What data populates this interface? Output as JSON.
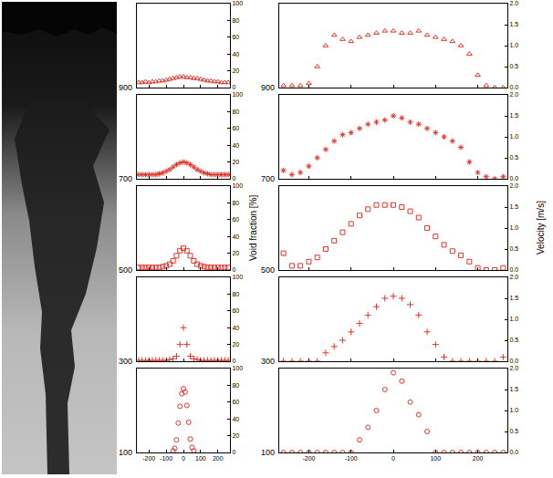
{
  "chart_data": [
    {
      "type": "scatter",
      "title": "900",
      "marker": "triangle",
      "color": "#e0352b",
      "x": [
        -260,
        -240,
        -220,
        -200,
        -180,
        -160,
        -140,
        -120,
        -100,
        -80,
        -60,
        -40,
        -20,
        0,
        20,
        40,
        60,
        80,
        100,
        120,
        140,
        160,
        180,
        200,
        220,
        240,
        260
      ],
      "values": [
        6,
        6,
        7,
        6,
        7,
        7,
        8,
        8,
        9,
        10,
        11,
        12,
        13,
        13,
        12,
        12,
        11,
        11,
        10,
        9,
        8,
        8,
        7,
        7,
        6,
        6,
        6
      ],
      "xlim": [
        -270,
        270
      ],
      "xticks": [
        -200,
        -100,
        0,
        100,
        200
      ],
      "ylim": [
        0,
        100
      ],
      "yticks": [
        0,
        20,
        40,
        60,
        80,
        100
      ],
      "grid": false,
      "tick_labels": "y"
    },
    {
      "type": "scatter",
      "title": "700",
      "marker": "asterisk",
      "color": "#e0352b",
      "x": [
        -260,
        -240,
        -220,
        -200,
        -180,
        -160,
        -140,
        -120,
        -100,
        -80,
        -60,
        -40,
        -20,
        0,
        20,
        40,
        60,
        80,
        100,
        120,
        140,
        160,
        180,
        200,
        220,
        240,
        260
      ],
      "values": [
        5,
        5,
        5,
        5,
        5,
        5,
        6,
        7,
        9,
        11,
        14,
        17,
        19,
        20,
        19,
        17,
        14,
        11,
        9,
        7,
        6,
        5,
        5,
        5,
        5,
        5,
        5
      ],
      "xlim": [
        -270,
        270
      ],
      "xticks": [
        -200,
        -100,
        0,
        100,
        200
      ],
      "ylim": [
        0,
        100
      ],
      "yticks": [
        0,
        20,
        40,
        60,
        80,
        100
      ],
      "grid": false,
      "tick_labels": "y"
    },
    {
      "type": "scatter",
      "title": "500",
      "marker": "square",
      "color": "#e0352b",
      "ylabel": "Void fraction [%]",
      "x": [
        -260,
        -240,
        -220,
        -200,
        -180,
        -160,
        -140,
        -120,
        -100,
        -80,
        -60,
        -40,
        -20,
        0,
        20,
        40,
        60,
        80,
        100,
        120,
        140,
        160,
        180,
        200,
        220,
        240,
        260
      ],
      "values": [
        3,
        3,
        3,
        3,
        3,
        3,
        3,
        4,
        5,
        7,
        11,
        17,
        23,
        26,
        23,
        17,
        11,
        7,
        5,
        4,
        3,
        3,
        3,
        3,
        3,
        3,
        3
      ],
      "xlim": [
        -270,
        270
      ],
      "xticks": [
        -200,
        -100,
        0,
        100,
        200
      ],
      "ylim": [
        0,
        100
      ],
      "yticks": [
        0,
        20,
        40,
        60,
        80,
        100
      ],
      "grid": false,
      "tick_labels": "y"
    },
    {
      "type": "scatter",
      "title": "300",
      "marker": "plus",
      "color": "#e0352b",
      "x": [
        -260,
        -240,
        -220,
        -200,
        -180,
        -160,
        -140,
        -120,
        -100,
        -80,
        -60,
        -40,
        -20,
        0,
        20,
        40,
        60,
        80,
        100,
        120,
        140,
        160,
        180,
        200,
        220,
        240,
        260
      ],
      "values": [
        1,
        1,
        1,
        1,
        1,
        1,
        1,
        1,
        1,
        2,
        3,
        6,
        20,
        40,
        20,
        6,
        3,
        2,
        1,
        1,
        1,
        1,
        1,
        1,
        1,
        1,
        1
      ],
      "xlim": [
        -270,
        270
      ],
      "xticks": [
        -200,
        -100,
        0,
        100,
        200
      ],
      "ylim": [
        0,
        100
      ],
      "yticks": [
        0,
        20,
        40,
        60,
        80,
        100
      ],
      "grid": false,
      "tick_labels": "y"
    },
    {
      "type": "scatter",
      "title": "100",
      "marker": "circle",
      "color": "#e0352b",
      "x": [
        -60,
        -50,
        -40,
        -30,
        -20,
        -10,
        0,
        10,
        20,
        30,
        40,
        50,
        60
      ],
      "values": [
        2,
        5,
        15,
        35,
        55,
        70,
        76,
        72,
        56,
        36,
        16,
        6,
        2
      ],
      "xlim": [
        -270,
        270
      ],
      "xticks": [
        -200,
        -100,
        0,
        100,
        200
      ],
      "ylim": [
        0,
        100
      ],
      "yticks": [
        0,
        20,
        40,
        60,
        80,
        100
      ],
      "grid": false
    },
    {
      "type": "scatter",
      "title": "900",
      "marker": "triangle",
      "color": "#e0352b",
      "x": [
        -260,
        -240,
        -220,
        -200,
        -180,
        -160,
        -140,
        -120,
        -100,
        -80,
        -60,
        -40,
        -20,
        0,
        20,
        40,
        60,
        80,
        100,
        120,
        140,
        160,
        180,
        200,
        220,
        240,
        260
      ],
      "values": [
        0.05,
        0.05,
        0.05,
        0.1,
        0.5,
        1.0,
        1.25,
        1.15,
        1.1,
        1.2,
        1.25,
        1.3,
        1.35,
        1.35,
        1.3,
        1.3,
        1.35,
        1.25,
        1.2,
        1.15,
        1.1,
        1.0,
        0.8,
        0.3,
        0.05,
        0,
        0
      ],
      "xlim": [
        -270,
        270
      ],
      "xticks": [
        -200,
        -100,
        0,
        100,
        200
      ],
      "ylim": [
        0,
        2
      ],
      "yticks": [
        {
          "value": 0,
          "label": "0.0"
        },
        {
          "value": 0.5,
          "label": "0.5"
        },
        {
          "value": 1,
          "label": "1.0"
        },
        {
          "value": 1.5,
          "label": "1.5"
        },
        {
          "value": 2,
          "label": "2.0"
        }
      ],
      "grid": false,
      "tick_labels": "y"
    },
    {
      "type": "scatter",
      "title": "700",
      "marker": "asterisk",
      "color": "#e0352b",
      "x": [
        -260,
        -240,
        -220,
        -200,
        -180,
        -160,
        -140,
        -120,
        -100,
        -80,
        -60,
        -40,
        -20,
        0,
        20,
        40,
        60,
        80,
        100,
        120,
        140,
        160,
        180,
        200,
        220,
        240,
        260
      ],
      "values": [
        0.2,
        0.1,
        0.15,
        0.3,
        0.5,
        0.7,
        0.9,
        1.05,
        1.1,
        1.2,
        1.3,
        1.35,
        1.4,
        1.5,
        1.45,
        1.35,
        1.3,
        1.2,
        1.1,
        1.0,
        0.9,
        0.75,
        0.4,
        0.15,
        0.05,
        0,
        0.05
      ],
      "xlim": [
        -270,
        270
      ],
      "xticks": [
        -200,
        -100,
        0,
        100,
        200
      ],
      "ylim": [
        0,
        2
      ],
      "yticks": [
        {
          "value": 0,
          "label": "0.0"
        },
        {
          "value": 0.5,
          "label": "0.5"
        },
        {
          "value": 1,
          "label": "1.0"
        },
        {
          "value": 1.5,
          "label": "1.5"
        },
        {
          "value": 2,
          "label": "2.0"
        }
      ],
      "grid": false,
      "tick_labels": "y"
    },
    {
      "type": "scatter",
      "title": "500",
      "marker": "square",
      "color": "#e0352b",
      "ylabel": "Velocity [m/s]",
      "x": [
        -260,
        -240,
        -220,
        -200,
        -180,
        -160,
        -140,
        -120,
        -100,
        -80,
        -60,
        -40,
        -20,
        0,
        20,
        40,
        60,
        80,
        100,
        120,
        140,
        160,
        180,
        200,
        220,
        240,
        260
      ],
      "values": [
        0.4,
        0.1,
        0.1,
        0.2,
        0.3,
        0.5,
        0.7,
        0.9,
        1.1,
        1.3,
        1.45,
        1.55,
        1.55,
        1.55,
        1.5,
        1.4,
        1.25,
        1.0,
        0.8,
        0.6,
        0.45,
        0.35,
        0.2,
        0.05,
        0,
        0,
        0.05
      ],
      "xlim": [
        -270,
        270
      ],
      "xticks": [
        -200,
        -100,
        0,
        100,
        200
      ],
      "ylim": [
        0,
        2
      ],
      "yticks": [
        {
          "value": 0,
          "label": "0.0"
        },
        {
          "value": 0.5,
          "label": "0.5"
        },
        {
          "value": 1,
          "label": "1.0"
        },
        {
          "value": 1.5,
          "label": "1.5"
        },
        {
          "value": 2,
          "label": "2.0"
        }
      ],
      "grid": false,
      "tick_labels": "y"
    },
    {
      "type": "scatter",
      "title": "300",
      "marker": "plus",
      "color": "#e0352b",
      "x": [
        -260,
        -240,
        -220,
        -200,
        -180,
        -160,
        -140,
        -120,
        -100,
        -80,
        -60,
        -40,
        -20,
        0,
        20,
        40,
        60,
        80,
        100,
        120,
        140,
        160,
        180,
        200,
        220,
        240,
        260
      ],
      "values": [
        0,
        0,
        0,
        0,
        0,
        0.2,
        0.35,
        0.5,
        0.7,
        0.9,
        1.1,
        1.3,
        1.5,
        1.55,
        1.5,
        1.35,
        1.1,
        0.7,
        0.4,
        0.1,
        0,
        0,
        0,
        0,
        0,
        0,
        0.1
      ],
      "xlim": [
        -270,
        270
      ],
      "xticks": [
        -200,
        -100,
        0,
        100,
        200
      ],
      "ylim": [
        0,
        2
      ],
      "yticks": [
        {
          "value": 0,
          "label": "0.0"
        },
        {
          "value": 0.5,
          "label": "0.5"
        },
        {
          "value": 1,
          "label": "1.0"
        },
        {
          "value": 1.5,
          "label": "1.5"
        },
        {
          "value": 2,
          "label": "2.0"
        }
      ],
      "grid": false,
      "tick_labels": "y"
    },
    {
      "type": "scatter",
      "title": "100",
      "marker": "circle",
      "color": "#e0352b",
      "x": [
        -260,
        -240,
        -220,
        -200,
        -180,
        -160,
        -140,
        -120,
        -100,
        -80,
        -60,
        -40,
        -20,
        0,
        20,
        40,
        60,
        80,
        100,
        120,
        140,
        160,
        180,
        200,
        220,
        240,
        260
      ],
      "values": [
        0,
        0,
        0,
        0,
        0,
        0,
        0,
        0,
        0,
        0.3,
        0.6,
        1.0,
        1.5,
        1.9,
        1.7,
        1.2,
        0.9,
        0.5,
        0,
        0,
        0,
        0,
        0,
        0,
        0,
        0,
        0
      ],
      "xlim": [
        -270,
        270
      ],
      "xticks": [
        -200,
        -100,
        0,
        100,
        200
      ],
      "ylim": [
        0,
        2
      ],
      "yticks": [
        {
          "value": 0,
          "label": "0.0"
        },
        {
          "value": 0.5,
          "label": "0.5"
        },
        {
          "value": 1,
          "label": "1.0"
        },
        {
          "value": 1.5,
          "label": "1.5"
        },
        {
          "value": 2,
          "label": "2.0"
        }
      ],
      "grid": false
    }
  ]
}
